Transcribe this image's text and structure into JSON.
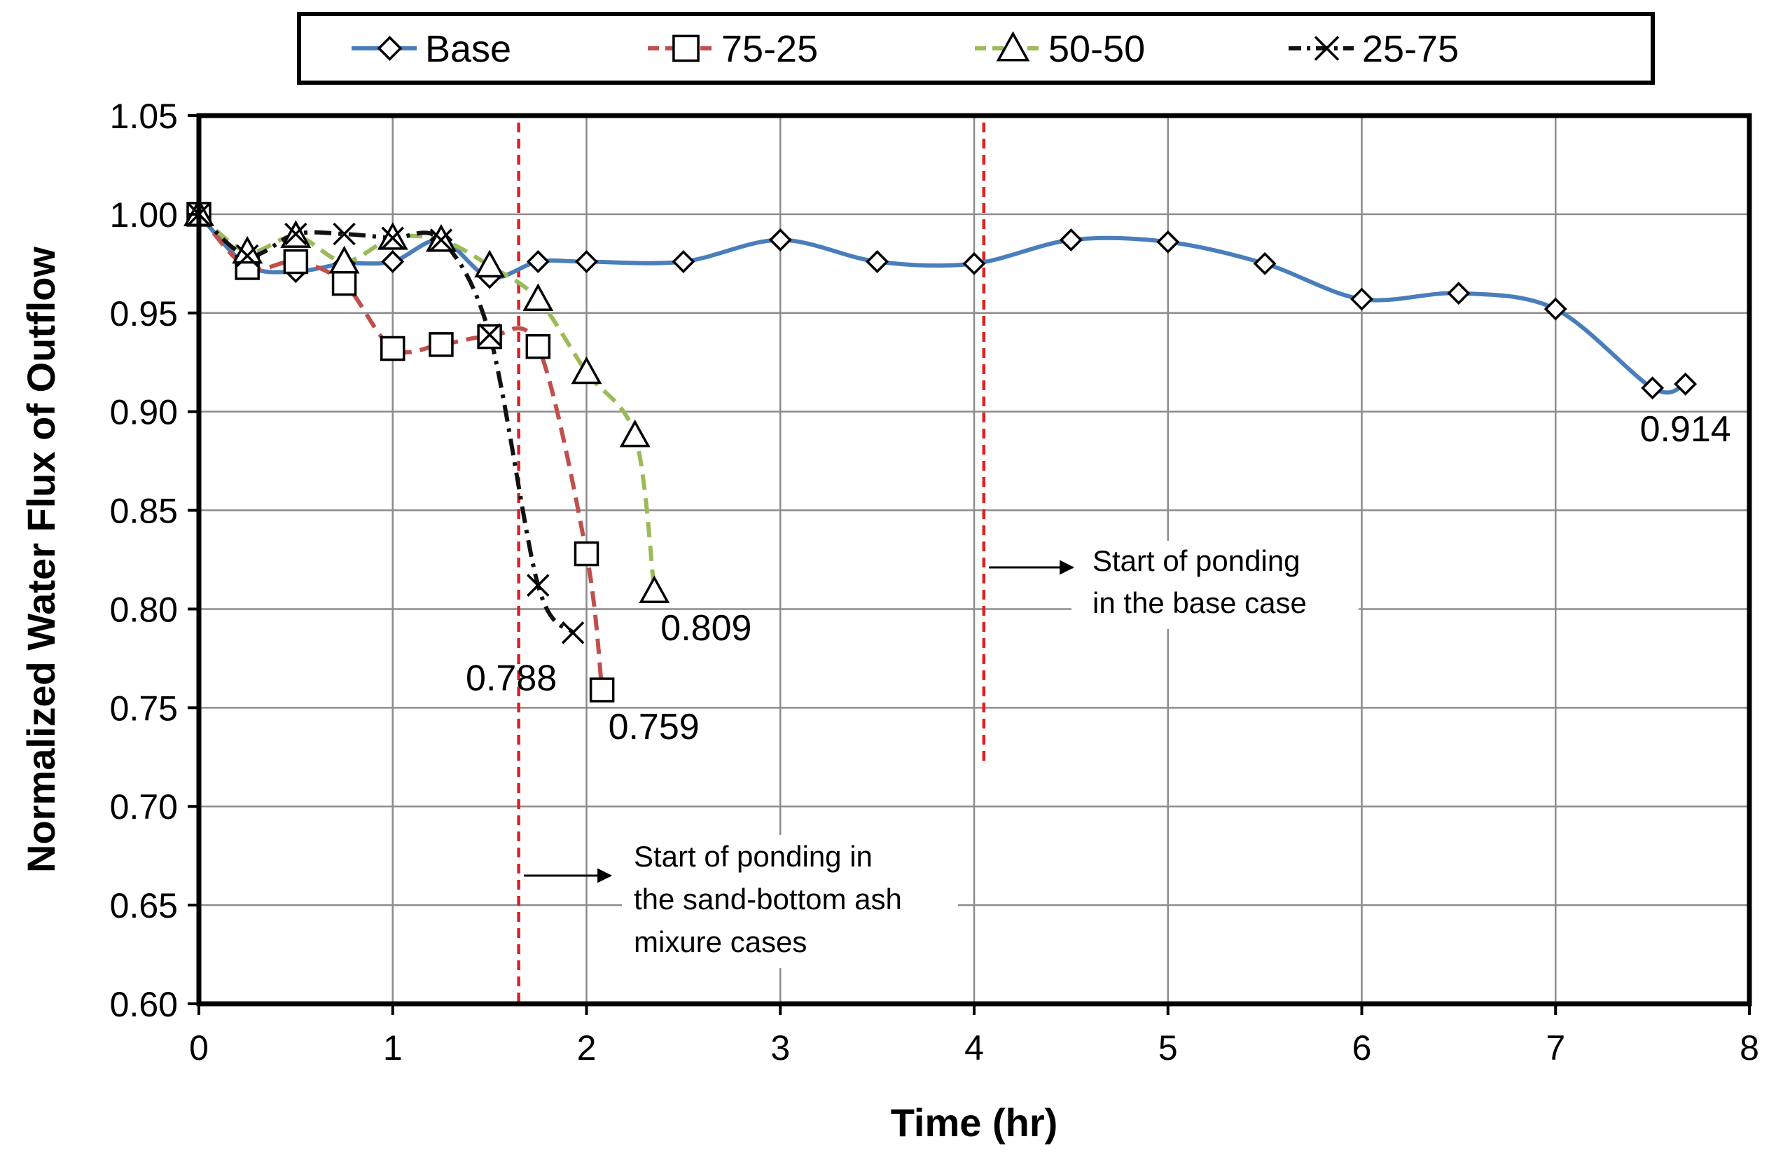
{
  "chart_data": {
    "type": "line",
    "title": "",
    "xlabel": "Time (hr)",
    "ylabel": "Normalized Water Flux of Outflow",
    "xlim": [
      0,
      8
    ],
    "ylim": [
      0.6,
      1.05
    ],
    "xticks": [
      0,
      1,
      2,
      3,
      4,
      5,
      6,
      7,
      8
    ],
    "yticks": [
      0.6,
      0.65,
      0.7,
      0.75,
      0.8,
      0.85,
      0.9,
      0.95,
      1.0,
      1.05
    ],
    "xtick_labels": [
      "0",
      "1",
      "2",
      "3",
      "4",
      "5",
      "6",
      "7",
      "8"
    ],
    "ytick_labels": [
      "0.60",
      "0.65",
      "0.70",
      "0.75",
      "0.80",
      "0.85",
      "0.90",
      "0.95",
      "1.00",
      "1.05"
    ],
    "grid": true,
    "legend_position": "top",
    "series": [
      {
        "name": "Base",
        "color": "#4a7ebb",
        "dash": "solid",
        "marker": "diamond",
        "x": [
          0,
          0.25,
          0.5,
          0.75,
          1.0,
          1.25,
          1.5,
          1.75,
          2.0,
          2.5,
          3.0,
          3.5,
          4.0,
          4.5,
          5.0,
          5.5,
          6.0,
          6.5,
          7.0,
          7.5,
          7.67
        ],
        "y": [
          1.0,
          0.974,
          0.971,
          0.975,
          0.976,
          0.987,
          0.968,
          0.976,
          0.976,
          0.976,
          0.987,
          0.976,
          0.975,
          0.987,
          0.986,
          0.975,
          0.957,
          0.96,
          0.952,
          0.912,
          0.914
        ]
      },
      {
        "name": "75-25",
        "color": "#c0504d",
        "dash": "dashed",
        "marker": "square",
        "x": [
          0,
          0.25,
          0.5,
          0.75,
          1.0,
          1.25,
          1.5,
          1.75,
          2.0,
          2.08
        ],
        "y": [
          1.0,
          0.973,
          0.976,
          0.965,
          0.932,
          0.934,
          0.938,
          0.933,
          0.828,
          0.759
        ]
      },
      {
        "name": "50-50",
        "color": "#9bbb59",
        "dash": "dashed",
        "marker": "triangle",
        "x": [
          0,
          0.25,
          0.5,
          0.75,
          1.0,
          1.25,
          1.5,
          1.75,
          2.0,
          2.25,
          2.35
        ],
        "y": [
          1.0,
          0.981,
          0.989,
          0.976,
          0.988,
          0.987,
          0.974,
          0.957,
          0.92,
          0.888,
          0.809
        ]
      },
      {
        "name": "25-75",
        "color": "#111111",
        "dash": "dashdot",
        "marker": "x",
        "x": [
          0,
          0.25,
          0.5,
          0.75,
          1.0,
          1.25,
          1.5,
          1.75,
          1.93
        ],
        "y": [
          1.0,
          0.979,
          0.99,
          0.99,
          0.988,
          0.987,
          0.939,
          0.812,
          0.788
        ]
      }
    ],
    "data_labels": [
      {
        "text": "0.914",
        "x": 7.67,
        "y": 0.914
      },
      {
        "text": "0.809",
        "x": 2.35,
        "y": 0.809
      },
      {
        "text": "0.788",
        "x": 1.93,
        "y": 0.788
      },
      {
        "text": "0.759",
        "x": 2.08,
        "y": 0.759
      }
    ],
    "vlines": [
      {
        "name": "ponding-mixture",
        "x": 1.65,
        "color": "#e02020"
      },
      {
        "name": "ponding-base",
        "x": 4.05,
        "color": "#e02020"
      }
    ],
    "annotations": [
      {
        "lines": [
          "Start of ponding",
          "in the base case"
        ]
      },
      {
        "lines": [
          "Start of ponding in",
          "the sand-bottom ash",
          "mixure cases"
        ]
      }
    ]
  }
}
